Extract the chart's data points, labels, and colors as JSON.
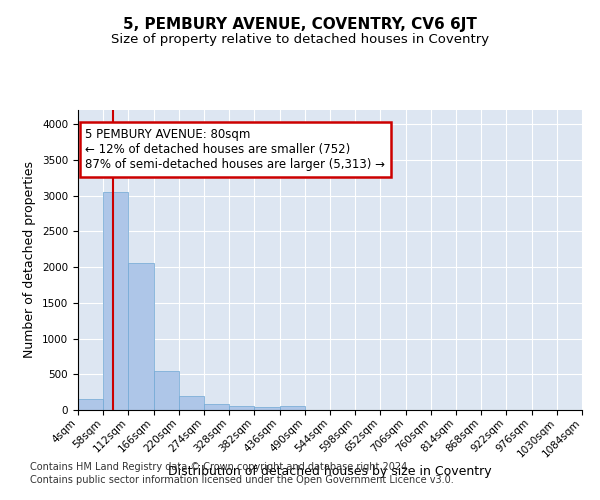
{
  "title": "5, PEMBURY AVENUE, COVENTRY, CV6 6JT",
  "subtitle": "Size of property relative to detached houses in Coventry",
  "xlabel": "Distribution of detached houses by size in Coventry",
  "ylabel": "Number of detached properties",
  "bin_edges": [
    4,
    58,
    112,
    166,
    220,
    274,
    328,
    382,
    436,
    490,
    544,
    598,
    652,
    706,
    760,
    814,
    868,
    922,
    976,
    1030,
    1084
  ],
  "bar_heights": [
    150,
    3050,
    2060,
    550,
    200,
    80,
    55,
    40,
    50,
    0,
    0,
    0,
    0,
    0,
    0,
    0,
    0,
    0,
    0,
    0
  ],
  "bar_color": "#aec6e8",
  "bar_edgecolor": "#6fa8d4",
  "property_sqm": 80,
  "property_line_color": "#cc0000",
  "annotation_line1": "5 PEMBURY AVENUE: 80sqm",
  "annotation_line2": "← 12% of detached houses are smaller (752)",
  "annotation_line3": "87% of semi-detached houses are larger (5,313) →",
  "annotation_box_edgecolor": "#cc0000",
  "ylim": [
    0,
    4200
  ],
  "yticks": [
    0,
    500,
    1000,
    1500,
    2000,
    2500,
    3000,
    3500,
    4000
  ],
  "background_color": "#dde6f2",
  "footer_line1": "Contains HM Land Registry data © Crown copyright and database right 2024.",
  "footer_line2": "Contains public sector information licensed under the Open Government Licence v3.0.",
  "title_fontsize": 11,
  "subtitle_fontsize": 9.5,
  "axis_label_fontsize": 9,
  "tick_fontsize": 7.5,
  "annotation_fontsize": 8.5,
  "footer_fontsize": 7
}
